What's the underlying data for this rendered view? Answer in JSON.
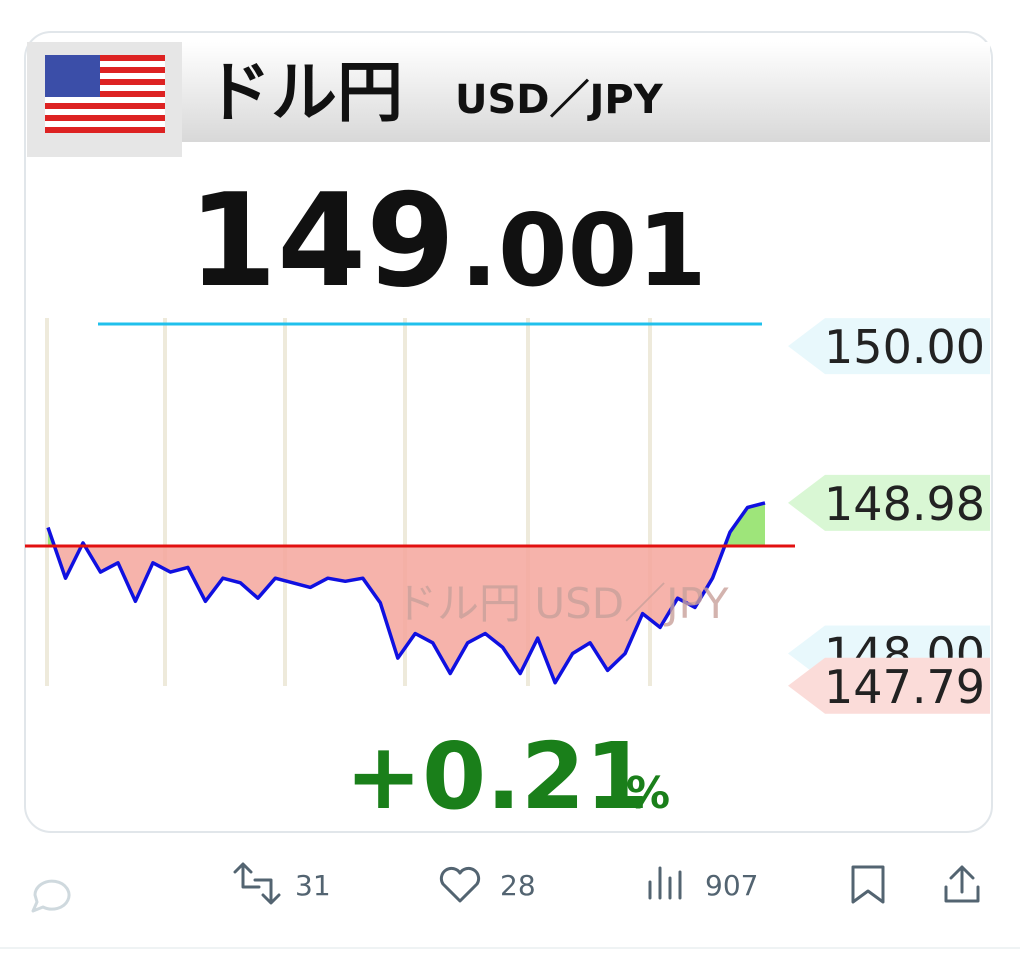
{
  "post_image": {
    "title": "ドル円",
    "pair": "USD／JPY",
    "price_int": "149",
    "price_dec": ".001",
    "watermark": "ドル円 USD／JPY",
    "change": "+0.21",
    "change_unit": "%",
    "chart_data": {
      "type": "line",
      "series": [
        {
          "color": "#1010e0",
          "values": [
            148.82,
            148.49,
            148.72,
            148.53,
            148.59,
            148.34,
            148.59,
            148.53,
            148.56,
            148.34,
            148.49,
            148.46,
            148.36,
            148.49,
            148.46,
            148.43,
            148.49,
            148.47,
            148.49,
            148.33,
            147.97,
            148.13,
            148.07,
            147.87,
            148.07,
            148.13,
            148.04,
            147.87,
            148.1,
            147.81,
            148.0,
            148.07,
            147.89,
            148.0,
            148.26,
            148.17,
            148.36,
            148.3,
            148.49,
            148.79,
            148.95,
            148.98
          ]
        }
      ],
      "ylim": [
        147.6,
        150.3
      ],
      "levels": [
        {
          "value": 150.0,
          "label": "150.00",
          "color": "#e8f8fc"
        },
        {
          "value": 148.0,
          "label": "148.00",
          "color": "#e8f8fc"
        },
        {
          "value": 148.98,
          "label": "148.98",
          "color": "#d9f7d4"
        },
        {
          "value": 147.79,
          "label": "147.79",
          "color": "#fbdcd9"
        }
      ]
    }
  },
  "actions": {
    "retweets": "31",
    "likes": "28",
    "views": "907"
  }
}
